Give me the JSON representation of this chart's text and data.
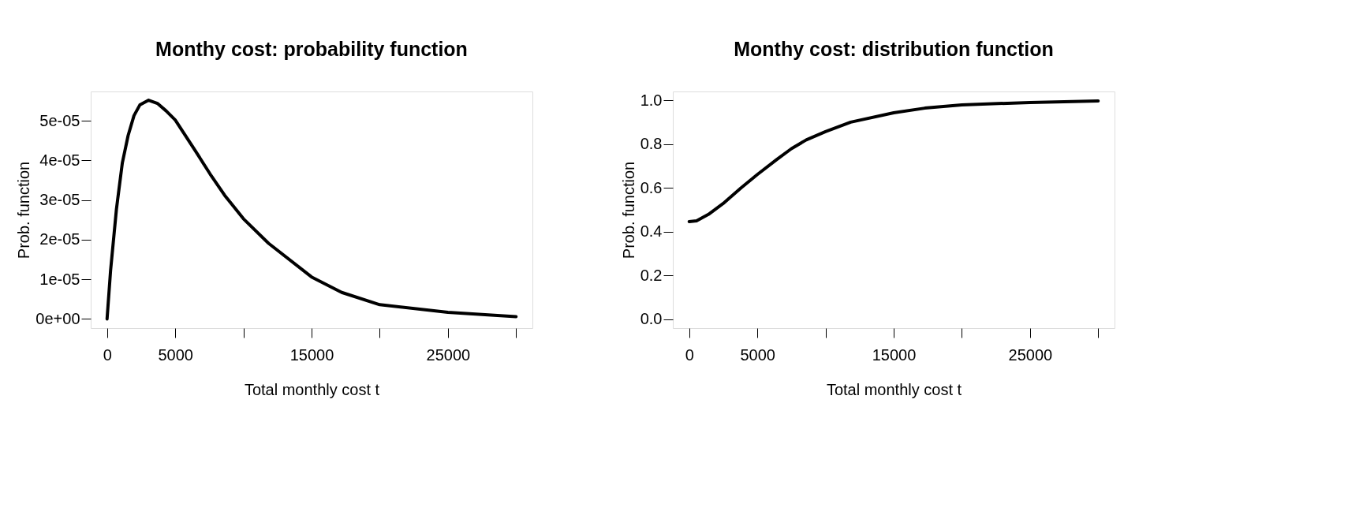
{
  "chart_data": [
    {
      "type": "line",
      "title": "Monthy cost: probability function",
      "xlabel": "Total monthly cost t",
      "ylabel": "Prob. function",
      "color": "#000000",
      "x": [
        0,
        257,
        687,
        1116,
        1545,
        1974,
        2403,
        3047,
        3691,
        4335,
        5000,
        6481,
        7554,
        8627,
        10000,
        11845,
        15000,
        17210,
        20000,
        25000,
        30000
      ],
      "values": [
        0,
        1.22e-05,
        2.77e-05,
        3.93e-05,
        4.63e-05,
        5.13e-05,
        5.4e-05,
        5.52e-05,
        5.44e-05,
        5.25e-05,
        5.02e-05,
        4.24e-05,
        3.66e-05,
        3.12e-05,
        2.53e-05,
        1.91e-05,
        1.06e-05,
        6.7e-06,
        3.6e-06,
        1.7e-06,
        6e-07
      ],
      "xlim": [
        -1200,
        31200
      ],
      "ylim": [
        -2.3e-06,
        5.74e-05
      ],
      "xticks": [
        0,
        5000,
        {
          "value": 10000,
          "label": null
        },
        15000,
        {
          "value": 20000,
          "label": null
        },
        25000,
        {
          "value": 30000,
          "label": null
        }
      ],
      "yticks": [
        {
          "value": 0,
          "label": "0e+00"
        },
        {
          "value": 1e-05,
          "label": "1e-05"
        },
        {
          "value": 2e-05,
          "label": "2e-05"
        },
        {
          "value": 3e-05,
          "label": "3e-05"
        },
        {
          "value": 4e-05,
          "label": "4e-05"
        },
        {
          "value": 5e-05,
          "label": "5e-05"
        }
      ]
    },
    {
      "type": "line",
      "title": "Monthy cost: distribution function",
      "xlabel": "Total monthly cost t",
      "ylabel": "Prob. function",
      "color": "#000000",
      "x": [
        0,
        543,
        1413,
        2500,
        3804,
        5000,
        6413,
        7500,
        8587,
        10000,
        11848,
        15000,
        17283,
        20000,
        25000,
        30000
      ],
      "values": [
        0.446,
        0.45,
        0.479,
        0.529,
        0.6,
        0.661,
        0.729,
        0.779,
        0.819,
        0.857,
        0.9,
        0.943,
        0.964,
        0.979,
        0.99,
        0.997
      ],
      "xlim": [
        -1200,
        31200
      ],
      "ylim": [
        -0.04,
        1.04
      ],
      "xticks": [
        0,
        5000,
        {
          "value": 10000,
          "label": null
        },
        15000,
        {
          "value": 20000,
          "label": null
        },
        25000,
        {
          "value": 30000,
          "label": null
        }
      ],
      "yticks": [
        {
          "value": 0,
          "label": "0.0"
        },
        {
          "value": 0.2,
          "label": "0.2"
        },
        {
          "value": 0.4,
          "label": "0.4"
        },
        {
          "value": 0.6,
          "label": "0.6"
        },
        {
          "value": 0.8,
          "label": "0.8"
        },
        {
          "value": 1.0,
          "label": "1.0"
        }
      ]
    }
  ]
}
